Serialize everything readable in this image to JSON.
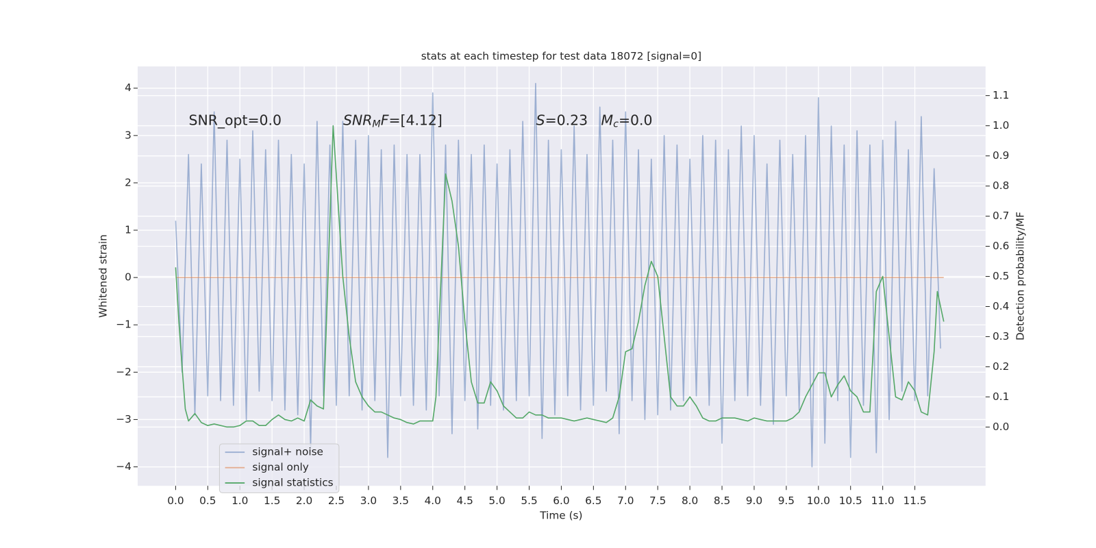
{
  "chart_data": {
    "type": "line",
    "title": "stats at each timestep for test data 18072 [signal=0]",
    "xlabel": "Time (s)",
    "ylabel": "Whitened strain",
    "y2label": "Detection probability/MF",
    "annotations": [
      [
        {
          "text": "SNR_opt=0.0"
        }
      ],
      [
        {
          "text": "SNR",
          "style": "italic"
        },
        {
          "text": "M",
          "style": "sub"
        },
        {
          "text": "F",
          "style": "italic"
        },
        {
          "text": "=[4.12]"
        }
      ],
      [
        {
          "text": "S",
          "style": "italic"
        },
        {
          "text": "=0.23   "
        },
        {
          "text": "M",
          "style": "italic"
        },
        {
          "text": "c",
          "style": "sub"
        },
        {
          "text": "=0.0"
        }
      ]
    ],
    "xlim": [
      -0.59,
      12.6
    ],
    "ylim": [
      -4.4,
      4.46
    ],
    "y2lim": [
      -0.195,
      1.197
    ],
    "xticks": [
      {
        "value": 0,
        "label": "0.0"
      },
      0.5,
      {
        "value": 1,
        "label": "1.0"
      },
      1.5,
      {
        "value": 2,
        "label": "2.0"
      },
      2.5,
      {
        "value": 3,
        "label": "3.0"
      },
      3.5,
      {
        "value": 4,
        "label": "4.0"
      },
      4.5,
      {
        "value": 5,
        "label": "5.0"
      },
      5.5,
      {
        "value": 6,
        "label": "6.0"
      },
      6.5,
      {
        "value": 7,
        "label": "7.0"
      },
      7.5,
      {
        "value": 8,
        "label": "8.0"
      },
      8.5,
      {
        "value": 9,
        "label": "9.0"
      },
      9.5,
      {
        "value": 10,
        "label": "10.0"
      },
      10.5,
      {
        "value": 11,
        "label": "11.0"
      },
      11.5
    ],
    "yticks": [
      {
        "value": -4,
        "label": "−4"
      },
      {
        "value": -3,
        "label": "−3"
      },
      {
        "value": -2,
        "label": "−2"
      },
      {
        "value": -1,
        "label": "−1"
      },
      0,
      1,
      2,
      3,
      4
    ],
    "y2ticks": [
      {
        "value": 0,
        "label": "0.0"
      },
      0.1,
      0.2,
      0.3,
      0.4,
      0.5,
      0.6,
      0.7,
      0.8,
      0.9,
      {
        "value": 1,
        "label": "1.0"
      },
      1.1
    ],
    "grid": true,
    "legend": "lower left",
    "series": [
      {
        "name": "signal+ noise",
        "color": "#4c72b0",
        "opacity": 0.5,
        "x": [
          0.0,
          0.1,
          0.2,
          0.3,
          0.4,
          0.5,
          0.6,
          0.7,
          0.8,
          0.9,
          1.0,
          1.1,
          1.2,
          1.3,
          1.4,
          1.5,
          1.6,
          1.7,
          1.8,
          1.9,
          2.0,
          2.1,
          2.2,
          2.3,
          2.4,
          2.5,
          2.6,
          2.7,
          2.8,
          2.9,
          3.0,
          3.1,
          3.2,
          3.3,
          3.4,
          3.5,
          3.6,
          3.7,
          3.8,
          3.9,
          4.0,
          4.1,
          4.2,
          4.3,
          4.4,
          4.5,
          4.6,
          4.7,
          4.8,
          4.9,
          5.0,
          5.1,
          5.2,
          5.3,
          5.4,
          5.5,
          5.6,
          5.7,
          5.8,
          5.9,
          6.0,
          6.1,
          6.2,
          6.3,
          6.4,
          6.5,
          6.6,
          6.7,
          6.8,
          6.9,
          7.0,
          7.1,
          7.2,
          7.3,
          7.4,
          7.5,
          7.6,
          7.7,
          7.8,
          7.9,
          8.0,
          8.1,
          8.2,
          8.3,
          8.4,
          8.5,
          8.6,
          8.7,
          8.8,
          8.9,
          9.0,
          9.1,
          9.2,
          9.3,
          9.4,
          9.5,
          9.6,
          9.7,
          9.8,
          9.9,
          10.0,
          10.1,
          10.2,
          10.3,
          10.4,
          10.5,
          10.6,
          10.7,
          10.8,
          10.9,
          11.0,
          11.1,
          11.2,
          11.3,
          11.4,
          11.5,
          11.6,
          11.7,
          11.8,
          11.9
        ],
        "values": [
          1.2,
          -2.0,
          2.6,
          -2.9,
          2.4,
          -2.5,
          3.5,
          -2.6,
          2.9,
          -2.7,
          2.5,
          -3.0,
          3.1,
          -2.4,
          2.7,
          -2.6,
          2.9,
          -2.8,
          2.6,
          -2.9,
          2.4,
          -3.6,
          3.3,
          -2.5,
          2.8,
          -2.7,
          3.3,
          -2.5,
          2.9,
          -2.8,
          3.0,
          -2.6,
          2.7,
          -3.8,
          2.8,
          -2.5,
          2.6,
          -2.7,
          2.6,
          -2.8,
          3.9,
          -2.5,
          2.8,
          -3.3,
          2.9,
          -2.6,
          2.6,
          -3.2,
          2.8,
          -2.7,
          2.4,
          -2.8,
          2.7,
          -2.6,
          3.3,
          -2.5,
          4.1,
          -3.4,
          2.9,
          -2.9,
          2.7,
          -2.5,
          3.2,
          -2.8,
          2.6,
          -2.7,
          3.6,
          -2.4,
          2.9,
          -3.3,
          3.5,
          -2.6,
          2.7,
          -3.0,
          2.5,
          -2.9,
          3.0,
          -2.8,
          2.8,
          -2.6,
          2.5,
          -2.5,
          3.0,
          -2.7,
          2.9,
          -3.5,
          2.7,
          -2.6,
          3.2,
          -2.5,
          3.0,
          -2.7,
          2.4,
          -3.1,
          2.9,
          -2.5,
          2.6,
          -2.8,
          3.0,
          -4.0,
          3.8,
          -3.5,
          3.2,
          -2.6,
          2.8,
          -3.8,
          3.1,
          -2.7,
          2.8,
          -3.7,
          2.9,
          -3.0,
          3.3,
          -2.4,
          2.7,
          -2.6,
          3.4,
          -2.5,
          2.3,
          -1.5
        ]
      },
      {
        "name": "signal only",
        "color": "#dd8452",
        "opacity": 0.6,
        "x": [
          0.0,
          11.95
        ],
        "values": [
          0,
          0
        ]
      },
      {
        "name": "signal statistics",
        "color": "#55a868",
        "opacity": 1,
        "axis": "y2",
        "x": [
          0.0,
          0.05,
          0.1,
          0.15,
          0.2,
          0.3,
          0.4,
          0.5,
          0.6,
          0.7,
          0.8,
          0.9,
          1.0,
          1.1,
          1.2,
          1.3,
          1.4,
          1.5,
          1.6,
          1.7,
          1.8,
          1.9,
          2.0,
          2.1,
          2.2,
          2.3,
          2.45,
          2.6,
          2.7,
          2.8,
          2.9,
          3.0,
          3.1,
          3.2,
          3.3,
          3.4,
          3.5,
          3.6,
          3.7,
          3.8,
          3.9,
          4.0,
          4.05,
          4.1,
          4.2,
          4.3,
          4.4,
          4.5,
          4.6,
          4.7,
          4.8,
          4.9,
          5.0,
          5.1,
          5.2,
          5.3,
          5.4,
          5.5,
          5.6,
          5.7,
          5.8,
          5.9,
          6.0,
          6.1,
          6.2,
          6.3,
          6.4,
          6.5,
          6.6,
          6.7,
          6.8,
          6.9,
          7.0,
          7.1,
          7.2,
          7.3,
          7.4,
          7.5,
          7.6,
          7.7,
          7.8,
          7.9,
          8.0,
          8.1,
          8.2,
          8.3,
          8.4,
          8.5,
          8.6,
          8.7,
          8.8,
          8.9,
          9.0,
          9.1,
          9.2,
          9.3,
          9.4,
          9.5,
          9.6,
          9.7,
          9.8,
          9.9,
          10.0,
          10.1,
          10.2,
          10.3,
          10.4,
          10.5,
          10.6,
          10.7,
          10.8,
          10.9,
          11.0,
          11.1,
          11.2,
          11.3,
          11.4,
          11.5,
          11.6,
          11.7,
          11.8,
          11.85,
          11.95
        ],
        "values": [
          0.53,
          0.35,
          0.2,
          0.06,
          0.02,
          0.045,
          0.015,
          0.005,
          0.01,
          0.005,
          0.0,
          0.0,
          0.005,
          0.02,
          0.02,
          0.005,
          0.005,
          0.025,
          0.04,
          0.025,
          0.02,
          0.03,
          0.02,
          0.09,
          0.07,
          0.06,
          1.0,
          0.5,
          0.3,
          0.15,
          0.1,
          0.07,
          0.05,
          0.05,
          0.04,
          0.03,
          0.025,
          0.015,
          0.01,
          0.02,
          0.02,
          0.02,
          0.1,
          0.35,
          0.84,
          0.75,
          0.6,
          0.35,
          0.15,
          0.08,
          0.08,
          0.15,
          0.12,
          0.07,
          0.05,
          0.03,
          0.03,
          0.05,
          0.04,
          0.04,
          0.03,
          0.03,
          0.03,
          0.025,
          0.02,
          0.025,
          0.03,
          0.025,
          0.02,
          0.015,
          0.03,
          0.1,
          0.25,
          0.26,
          0.35,
          0.47,
          0.55,
          0.5,
          0.3,
          0.1,
          0.07,
          0.07,
          0.1,
          0.07,
          0.03,
          0.02,
          0.02,
          0.03,
          0.03,
          0.03,
          0.025,
          0.02,
          0.03,
          0.025,
          0.02,
          0.02,
          0.02,
          0.02,
          0.03,
          0.05,
          0.1,
          0.14,
          0.18,
          0.18,
          0.1,
          0.14,
          0.17,
          0.12,
          0.1,
          0.05,
          0.05,
          0.45,
          0.5,
          0.3,
          0.1,
          0.09,
          0.15,
          0.12,
          0.05,
          0.04,
          0.25,
          0.45,
          0.35
        ]
      }
    ]
  }
}
